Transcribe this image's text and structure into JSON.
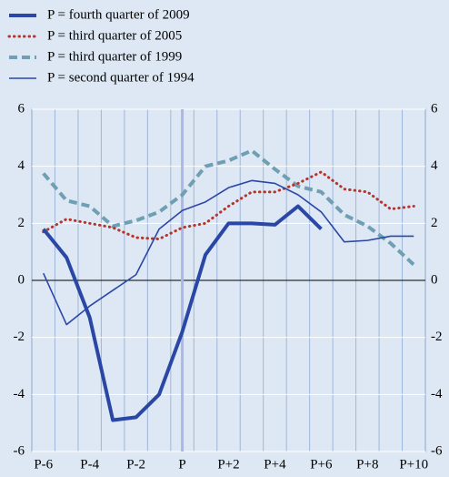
{
  "chart_data": {
    "type": "line",
    "categories": [
      "P-6",
      null,
      "P-4",
      null,
      "P-2",
      null,
      "P",
      null,
      "P+2",
      null,
      "P+4",
      null,
      "P+6",
      null,
      "P+8",
      null,
      "P+10"
    ],
    "series": [
      {
        "name": "P = fourth quarter of 2009",
        "color": "#2b47a6",
        "style": "thick",
        "values": [
          1.8,
          0.8,
          -1.3,
          -4.9,
          -4.8,
          -4.0,
          -1.8,
          0.9,
          2.0,
          2.0,
          1.95,
          2.6,
          1.8,
          null,
          null,
          null,
          null
        ]
      },
      {
        "name": "P = third quarter of 2005",
        "color": "#b5352c",
        "style": "dotted",
        "values": [
          1.7,
          2.15,
          2.0,
          1.85,
          1.5,
          1.45,
          1.85,
          2.0,
          2.6,
          3.1,
          3.1,
          3.4,
          3.8,
          3.2,
          3.1,
          2.5,
          2.6
        ]
      },
      {
        "name": "P = third quarter of 1999",
        "color": "#6e9fb2",
        "style": "dashed",
        "values": [
          3.75,
          2.8,
          2.6,
          1.9,
          2.1,
          2.4,
          3.0,
          4.0,
          4.2,
          4.55,
          3.9,
          3.3,
          3.1,
          2.3,
          1.9,
          1.3,
          0.55
        ]
      },
      {
        "name": "P = second quarter of 1994",
        "color": "#2b47a6",
        "style": "thin",
        "values": [
          0.25,
          -1.55,
          -0.9,
          -0.35,
          0.2,
          1.8,
          2.45,
          2.75,
          3.25,
          3.5,
          3.4,
          3.0,
          2.4,
          1.35,
          1.4,
          1.55,
          1.55
        ]
      }
    ],
    "ylim": [
      -6,
      6
    ],
    "yticks": [
      -6,
      -4,
      -2,
      0,
      2,
      4,
      6
    ],
    "grid": true
  }
}
